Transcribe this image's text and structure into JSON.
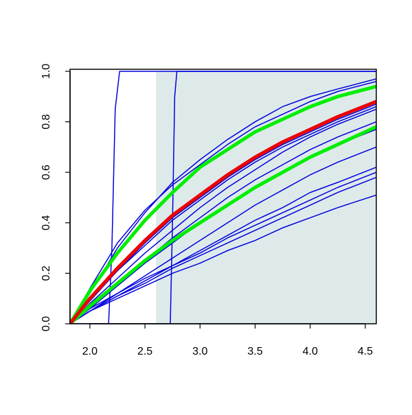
{
  "chart_data": {
    "type": "line",
    "xlim": [
      1.82,
      4.6
    ],
    "ylim": [
      0,
      1.008
    ],
    "xticks": [
      {
        "value": 2,
        "label": "2.0"
      },
      2.5,
      {
        "value": 3,
        "label": "3.0"
      },
      3.5,
      {
        "value": 4,
        "label": "4.0"
      },
      4.5
    ],
    "yticks": [
      {
        "value": 0,
        "label": "0.0"
      },
      0.2,
      0.4,
      0.6,
      0.8,
      {
        "value": 1,
        "label": "1.0"
      }
    ],
    "shaded_region": {
      "x": [
        2.6,
        4.6
      ],
      "y": [
        0,
        1
      ],
      "color": "#deeaea"
    },
    "x": [
      1.82,
      2.0,
      2.25,
      2.5,
      2.75,
      3.0,
      3.25,
      3.5,
      3.75,
      4.0,
      4.25,
      4.6
    ],
    "series": [
      {
        "color": "#0000dd",
        "line_width": 1.5,
        "values": [
          0,
          0.12,
          0.3,
          0.44,
          0.56,
          0.65,
          0.73,
          0.8,
          0.86,
          0.9,
          0.93,
          0.97
        ]
      },
      {
        "color": "#0000dd",
        "line_width": 1.5,
        "values": [
          0,
          0.14,
          0.32,
          0.45,
          0.55,
          0.63,
          0.71,
          0.78,
          0.83,
          0.88,
          0.92,
          0.96
        ]
      },
      {
        "color": "#0000dd",
        "line_width": 1.5,
        "values": [
          0,
          0.09,
          0.21,
          0.32,
          0.42,
          0.5,
          0.58,
          0.65,
          0.71,
          0.76,
          0.81,
          0.87
        ]
      },
      {
        "color": "#0000dd",
        "line_width": 1.5,
        "values": [
          0,
          0.1,
          0.21,
          0.31,
          0.41,
          0.49,
          0.57,
          0.64,
          0.7,
          0.75,
          0.8,
          0.86
        ]
      },
      {
        "color": "#0000dd",
        "line_width": 1.5,
        "values": [
          0,
          0.08,
          0.18,
          0.28,
          0.37,
          0.46,
          0.54,
          0.61,
          0.68,
          0.74,
          0.79,
          0.85
        ]
      },
      {
        "color": "#0000dd",
        "line_width": 1.5,
        "values": [
          0,
          0.07,
          0.16,
          0.25,
          0.34,
          0.42,
          0.5,
          0.57,
          0.63,
          0.69,
          0.74,
          0.8
        ]
      },
      {
        "color": "#0000dd",
        "line_width": 1.5,
        "values": [
          0,
          0.06,
          0.15,
          0.24,
          0.32,
          0.4,
          0.47,
          0.54,
          0.6,
          0.66,
          0.71,
          0.77
        ]
      },
      {
        "color": "#0000dd",
        "line_width": 1.5,
        "values": [
          0,
          0.05,
          0.12,
          0.19,
          0.26,
          0.33,
          0.4,
          0.47,
          0.53,
          0.59,
          0.64,
          0.7
        ]
      },
      {
        "color": "#0000dd",
        "line_width": 1.5,
        "values": [
          0,
          0.05,
          0.11,
          0.17,
          0.23,
          0.29,
          0.35,
          0.41,
          0.46,
          0.52,
          0.56,
          0.62
        ]
      },
      {
        "color": "#0000dd",
        "line_width": 1.5,
        "values": [
          0,
          0.06,
          0.12,
          0.18,
          0.23,
          0.28,
          0.34,
          0.39,
          0.44,
          0.49,
          0.54,
          0.6
        ]
      },
      {
        "color": "#0000dd",
        "line_width": 1.5,
        "values": [
          0,
          0.05,
          0.11,
          0.16,
          0.22,
          0.27,
          0.32,
          0.37,
          0.42,
          0.47,
          0.52,
          0.58
        ]
      },
      {
        "color": "#0000dd",
        "line_width": 1.5,
        "values": [
          0,
          0.05,
          0.1,
          0.15,
          0.2,
          0.24,
          0.29,
          0.33,
          0.38,
          0.42,
          0.46,
          0.51
        ]
      },
      {
        "color": "#0000dd",
        "line_width": 1.5,
        "x": [
          1.82,
          2.17,
          2.2,
          2.23,
          2.27,
          4.6
        ],
        "values": [
          0,
          0,
          0.3,
          0.85,
          1,
          1
        ]
      },
      {
        "color": "#0000dd",
        "line_width": 1.5,
        "x": [
          1.82,
          2.73,
          2.75,
          2.77,
          2.79,
          4.6
        ],
        "values": [
          0,
          0,
          0.4,
          0.9,
          1,
          1
        ]
      },
      {
        "color": "#00ee00",
        "line_width": 5,
        "values": [
          0,
          0.13,
          0.28,
          0.41,
          0.52,
          0.62,
          0.69,
          0.76,
          0.81,
          0.86,
          0.9,
          0.94
        ]
      },
      {
        "color": "#00ee00",
        "line_width": 5,
        "values": [
          0,
          0.07,
          0.16,
          0.25,
          0.33,
          0.4,
          0.47,
          0.54,
          0.6,
          0.66,
          0.71,
          0.78
        ]
      },
      {
        "color": "#ee0000",
        "line_width": 5,
        "values": [
          0,
          0.1,
          0.22,
          0.33,
          0.43,
          0.51,
          0.59,
          0.66,
          0.72,
          0.77,
          0.82,
          0.88
        ]
      }
    ]
  }
}
